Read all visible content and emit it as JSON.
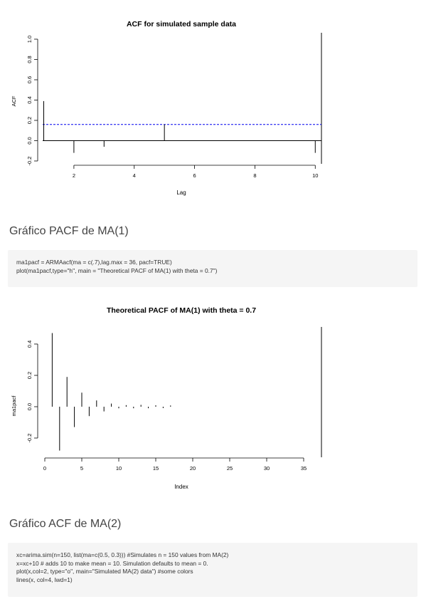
{
  "plots": {
    "acf": {
      "title": "ACF for simulated sample data",
      "xlabel": "Lag",
      "ylabel": "ACF",
      "yticks": [
        "-0.2",
        "0.0",
        "0.2",
        "0.4",
        "0.6",
        "0.8",
        "1.0"
      ],
      "xticks": [
        "2",
        "4",
        "6",
        "8",
        "10"
      ]
    },
    "pacf": {
      "title": "Theoretical PACF of MA(1) with theta = 0.7",
      "xlabel": "Index",
      "ylabel": "ma1pacf",
      "yticks": [
        "-0.2",
        "0.0",
        "0.2",
        "0.4"
      ],
      "xticks": [
        "0",
        "5",
        "10",
        "15",
        "20",
        "25",
        "30",
        "35"
      ]
    }
  },
  "chart_data": [
    {
      "type": "bar",
      "title": "ACF for simulated sample data",
      "xlabel": "Lag",
      "ylabel": "ACF",
      "x": [
        1,
        2,
        3,
        4,
        5,
        6,
        7,
        8,
        9,
        10
      ],
      "values": [
        0.39,
        -0.12,
        -0.06,
        0.0,
        0.16,
        0.0,
        0.0,
        0.0,
        0.0,
        -0.12
      ],
      "xlim": [
        0.8,
        10.3
      ],
      "ylim": [
        -0.2,
        1.0
      ],
      "confidence_line": 0.16,
      "grid": false
    },
    {
      "type": "bar",
      "title": "Theoretical PACF of MA(1) with theta = 0.7",
      "xlabel": "Index",
      "ylabel": "ma1pacf",
      "x": [
        1,
        2,
        3,
        4,
        5,
        6,
        7,
        8,
        9,
        10,
        11,
        12,
        13,
        14,
        15,
        16,
        17,
        18,
        19,
        20,
        21,
        22,
        23,
        24,
        25,
        26,
        27,
        28,
        29,
        30,
        31,
        32,
        33,
        34,
        35,
        36
      ],
      "values": [
        0.47,
        -0.28,
        0.19,
        -0.13,
        0.09,
        -0.06,
        0.04,
        -0.03,
        0.02,
        -0.01,
        0.01,
        -0.01,
        0.005,
        -0.003,
        0.002,
        -0.002,
        0.001,
        0,
        0,
        0,
        0,
        0,
        0,
        0,
        0,
        0,
        0,
        0,
        0,
        0,
        0,
        0,
        0,
        0,
        0,
        0
      ],
      "xlim": [
        0,
        37
      ],
      "ylim": [
        -0.3,
        0.5
      ],
      "grid": false
    }
  ],
  "sections": {
    "pacf_title": "Gráfico PACF de MA(1)",
    "pacf_code": [
      "ma1pacf = ARMAacf(ma = c(.7),lag.max = 36, pacf=TRUE)",
      "plot(ma1pacf,type=\"h\", main = \"Theoretical PACF of MA(1) with theta = 0.7\")"
    ],
    "acf_title": "Gráfico ACF de MA(2)",
    "acf_code": [
      "xc=arima.sim(n=150, list(ma=c(0.5, 0.3))) #Simulates n = 150 values from MA(2)",
      "x=xc+10 # adds 10 to make mean = 10. Simulation defaults to mean = 0.",
      "plot(x,col=2, type=\"o\", main=\"Simulated MA(2) data\") #some colors",
      "lines(x, col=4, lwd=1)"
    ]
  },
  "colors": {
    "confidence_line": "#0000ee",
    "code_bg": "#f5f5f5"
  }
}
